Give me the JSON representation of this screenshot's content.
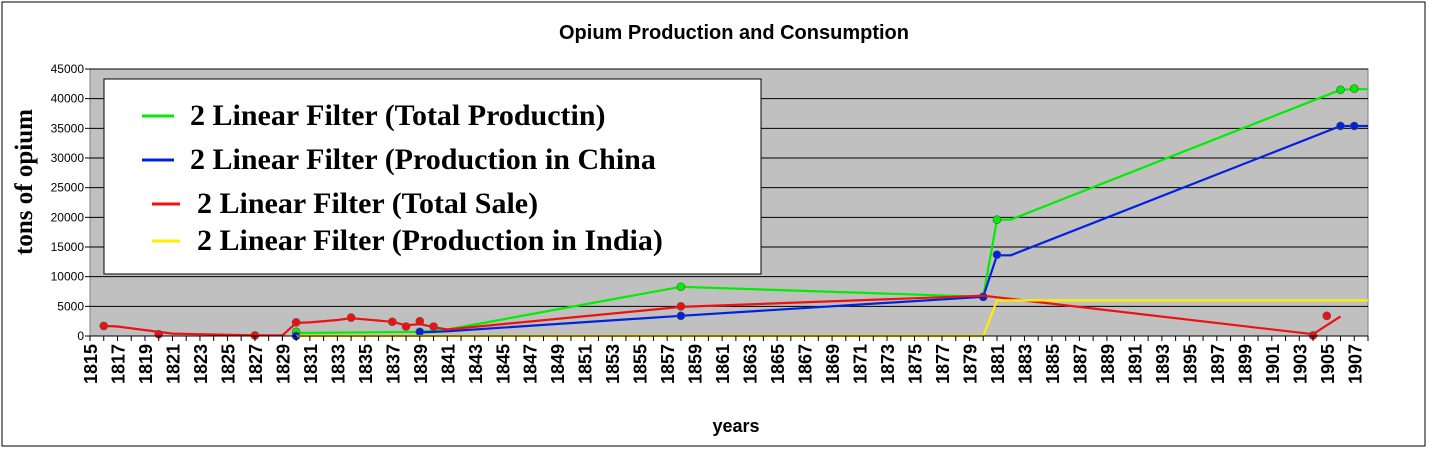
{
  "chart_data": {
    "type": "line",
    "title": "Opium Production and Consumption",
    "xlabel": "years",
    "ylabel": "tons of opium",
    "x_range": [
      1815,
      1908
    ],
    "x_tick_labels": [
      "1815",
      "1817",
      "1819",
      "1821",
      "1823",
      "1825",
      "1827",
      "1829",
      "1831",
      "1833",
      "1835",
      "1837",
      "1839",
      "1841",
      "1843",
      "1845",
      "1847",
      "1849",
      "1851",
      "1853",
      "1855",
      "1857",
      "1859",
      "1861",
      "1863",
      "1865",
      "1867",
      "1869",
      "1871",
      "1873",
      "1875",
      "1877",
      "1879",
      "1881",
      "1883",
      "1885",
      "1887",
      "1889",
      "1891",
      "1893",
      "1895",
      "1897",
      "1899",
      "1901",
      "1903",
      "1905",
      "1907"
    ],
    "y_tick_labels": [
      "0",
      "5000",
      "10000",
      "15000",
      "20000",
      "25000",
      "30000",
      "35000",
      "40000",
      "45000"
    ],
    "ylim": [
      0,
      45000
    ],
    "grid": true,
    "legend_position": "top-left",
    "series": [
      {
        "name": "2 Linear Filter (Total Productin)",
        "color": "#00ee00",
        "points": [
          [
            1830,
            500
          ],
          [
            1839,
            700
          ],
          [
            1841,
            1100
          ],
          [
            1858,
            8300
          ],
          [
            1880,
            6600
          ],
          [
            1881,
            19600
          ],
          [
            1882,
            19600
          ],
          [
            1906,
            41500
          ],
          [
            1907,
            41600
          ],
          [
            1908,
            41600
          ]
        ],
        "markers": [
          [
            1830,
            700
          ],
          [
            1858,
            8300
          ],
          [
            1880,
            6600
          ],
          [
            1881,
            19600
          ],
          [
            1906,
            41500
          ],
          [
            1907,
            41700
          ]
        ]
      },
      {
        "name": "2 Linear Filter (Production in China",
        "color": "#0022dd",
        "points": [
          [
            1839,
            600
          ],
          [
            1841,
            800
          ],
          [
            1858,
            3400
          ],
          [
            1880,
            6600
          ],
          [
            1881,
            13600
          ],
          [
            1882,
            13600
          ],
          [
            1906,
            35400
          ],
          [
            1907,
            35400
          ],
          [
            1908,
            35400
          ]
        ],
        "markers": [
          [
            1830,
            0
          ],
          [
            1839,
            700
          ],
          [
            1858,
            3400
          ],
          [
            1880,
            6600
          ],
          [
            1881,
            13700
          ],
          [
            1906,
            35400
          ],
          [
            1907,
            35400
          ]
        ]
      },
      {
        "name": "2 Linear Filter (Total Sale)",
        "color": "#ee1111",
        "points": [
          [
            1816,
            1700
          ],
          [
            1817,
            1600
          ],
          [
            1821,
            400
          ],
          [
            1823,
            300
          ],
          [
            1827,
            100
          ],
          [
            1829,
            100
          ],
          [
            1830,
            2200
          ],
          [
            1831,
            2300
          ],
          [
            1833,
            2700
          ],
          [
            1834,
            3000
          ],
          [
            1837,
            2400
          ],
          [
            1838,
            1800
          ],
          [
            1839,
            2000
          ],
          [
            1840,
            1500
          ],
          [
            1841,
            1100
          ],
          [
            1858,
            4900
          ],
          [
            1880,
            6800
          ],
          [
            1904,
            300
          ],
          [
            1906,
            3300
          ]
        ],
        "markers": [
          [
            1816,
            1700
          ],
          [
            1820,
            300
          ],
          [
            1827,
            100
          ],
          [
            1830,
            2300
          ],
          [
            1834,
            3100
          ],
          [
            1837,
            2400
          ],
          [
            1838,
            1600
          ],
          [
            1839,
            2500
          ],
          [
            1840,
            1600
          ],
          [
            1858,
            5000
          ],
          [
            1904,
            100
          ],
          [
            1905,
            3400
          ]
        ]
      },
      {
        "name": "2 Linear Filter (Production in India)",
        "color": "#ffee00",
        "points": [
          [
            1830,
            0
          ],
          [
            1880,
            0
          ],
          [
            1881,
            6000
          ],
          [
            1908,
            6000
          ]
        ],
        "markers": []
      }
    ]
  }
}
